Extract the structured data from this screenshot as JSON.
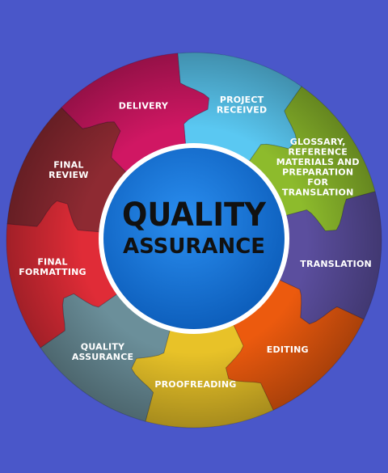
{
  "center": {
    "title_line1": "QUALITY",
    "title_line2": "ASSURANCE",
    "color": "#0f6fd6",
    "ring_color": "#ffffff",
    "text_color": "#111111"
  },
  "background_color": "#4a57c9",
  "segments": [
    {
      "id": "project-received",
      "lines": [
        "PROJECT",
        "RECEIVED"
      ],
      "color": "#5ac8f2"
    },
    {
      "id": "glossary",
      "lines": [
        "GLOSSARY,",
        "REFERENCE",
        "MATERIALS AND",
        "PREPARATION",
        "FOR",
        "TRANSLATION"
      ],
      "color": "#8dbb2c"
    },
    {
      "id": "translation",
      "lines": [
        "TRANSLATION"
      ],
      "color": "#5b4e9e"
    },
    {
      "id": "editing",
      "lines": [
        "EDITING"
      ],
      "color": "#ec5a0e"
    },
    {
      "id": "proofreading",
      "lines": [
        "PROOFREADING"
      ],
      "color": "#e8c228"
    },
    {
      "id": "quality-assurance",
      "lines": [
        "QUALITY",
        "ASSURANCE"
      ],
      "color": "#6b8f9a"
    },
    {
      "id": "final-formatting",
      "lines": [
        "FINAL",
        "FORMATTING"
      ],
      "color": "#e02c37"
    },
    {
      "id": "final-review",
      "lines": [
        "FINAL",
        "REVIEW"
      ],
      "color": "#8e2a32"
    },
    {
      "id": "delivery",
      "lines": [
        "DELIVERY"
      ],
      "color": "#d01763"
    }
  ]
}
